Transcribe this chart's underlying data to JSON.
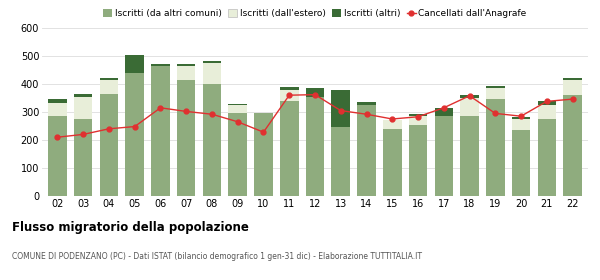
{
  "years": [
    "02",
    "03",
    "04",
    "05",
    "06",
    "07",
    "08",
    "09",
    "10",
    "11",
    "12",
    "13",
    "14",
    "15",
    "16",
    "17",
    "18",
    "19",
    "20",
    "21",
    "22"
  ],
  "iscritti_comuni": [
    285,
    275,
    365,
    440,
    465,
    415,
    400,
    295,
    295,
    340,
    355,
    245,
    325,
    240,
    255,
    285,
    285,
    345,
    235,
    275,
    360
  ],
  "iscritti_estero": [
    48,
    80,
    50,
    0,
    0,
    50,
    75,
    30,
    0,
    40,
    0,
    0,
    0,
    30,
    30,
    0,
    65,
    40,
    40,
    50,
    55
  ],
  "iscritti_altri": [
    12,
    8,
    8,
    65,
    8,
    8,
    8,
    5,
    0,
    10,
    30,
    135,
    12,
    0,
    8,
    30,
    12,
    8,
    8,
    15,
    8
  ],
  "cancellati": [
    210,
    220,
    240,
    248,
    315,
    302,
    292,
    265,
    228,
    360,
    362,
    305,
    292,
    275,
    283,
    315,
    358,
    295,
    285,
    338,
    346
  ],
  "color_comuni": "#8fac7e",
  "color_estero": "#e8eed9",
  "color_altri": "#3a6b35",
  "color_cancellati": "#e03030",
  "ylim": [
    0,
    600
  ],
  "yticks": [
    0,
    100,
    200,
    300,
    400,
    500,
    600
  ],
  "title": "Flusso migratorio della popolazione",
  "subtitle": "COMUNE DI PODENZANO (PC) - Dati ISTAT (bilancio demografico 1 gen-31 dic) - Elaborazione TUTTITALIA.IT",
  "legend_labels": [
    "Iscritti (da altri comuni)",
    "Iscritti (dall'estero)",
    "Iscritti (altri)",
    "Cancellati dall'Anagrafe"
  ],
  "bg_color": "#ffffff",
  "grid_color": "#dddddd"
}
